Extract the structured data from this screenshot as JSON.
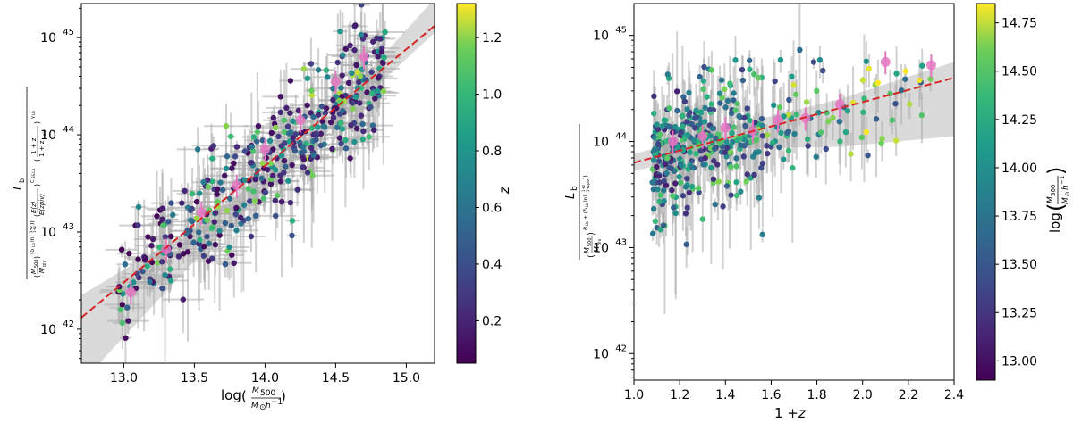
{
  "chart_data": [
    {
      "type": "scatter",
      "panel": "left",
      "xlabel": "log(M500 / M⊙h⁻¹)",
      "ylabel": "L_b / ((M500/Mpiv)^(δLb ln((1+z)/(1+zpiv))) (E(z)/E(zpiv))^(C_SS,Lb) ((1+z)/(1+zpiv))^(γLb))",
      "xlim": [
        12.7,
        15.2
      ],
      "ylim_log10": [
        41.65,
        45.35
      ],
      "y_scale": "log",
      "x_ticks": [
        "13.0",
        "13.5",
        "14.0",
        "14.5",
        "15.0"
      ],
      "x_tick_values": [
        13.0,
        13.5,
        14.0,
        14.5,
        15.0
      ],
      "y_tick_exponents": [
        42,
        43,
        44,
        45
      ],
      "colorbar": {
        "label": "z",
        "range": [
          0.05,
          1.32
        ],
        "ticks": [
          "0.2",
          "0.4",
          "0.6",
          "0.8",
          "1.0",
          "1.2"
        ],
        "tick_values": [
          0.2,
          0.4,
          0.6,
          0.8,
          1.0,
          1.2
        ]
      },
      "fit_line": {
        "x": [
          12.7,
          15.2
        ],
        "log10_y": [
          42.12,
          45.12
        ],
        "color": "#d62728",
        "style": "dashed"
      },
      "confidence_band": {
        "x": [
          12.7,
          13.5,
          14.2,
          15.2
        ],
        "log10_y_low": [
          41.45,
          42.7,
          43.7,
          45.05
        ],
        "log10_y_high": [
          42.35,
          43.05,
          43.8,
          45.4
        ]
      },
      "binned_points": {
        "x": [
          13.05,
          13.3,
          13.55,
          13.8,
          14.0,
          14.25,
          14.5,
          14.7
        ],
        "log10_y": [
          42.38,
          42.82,
          43.2,
          43.48,
          43.85,
          44.15,
          44.55,
          44.8
        ],
        "color": "#e377c2"
      },
      "scatter_model": {
        "count": 420,
        "x_range": [
          12.95,
          14.85
        ],
        "log10_y_relation": "log10(y) = 42.12 + 1.2*(x - 12.7)",
        "log10_y_scatter": 0.28,
        "color_value": "z"
      }
    },
    {
      "type": "scatter",
      "panel": "right",
      "xlabel": "1 + z",
      "ylabel": "L_b / (M500/Mpiv)^(B_Lb + δLb ln((1+z)/(1+zpiv)))",
      "xlim": [
        1.0,
        2.4
      ],
      "ylim_log10": [
        41.75,
        45.3
      ],
      "y_scale": "log",
      "x_ticks": [
        "1.0",
        "1.2",
        "1.4",
        "1.6",
        "1.8",
        "2.0",
        "2.2",
        "2.4"
      ],
      "x_tick_values": [
        1.0,
        1.2,
        1.4,
        1.6,
        1.8,
        2.0,
        2.2,
        2.4
      ],
      "y_tick_exponents": [
        42,
        43,
        44,
        45
      ],
      "colorbar": {
        "label": "log(M500 / M⊙h⁻¹)",
        "range": [
          12.9,
          14.85
        ],
        "ticks": [
          "13.00",
          "13.25",
          "13.50",
          "13.75",
          "14.00",
          "14.25",
          "14.50",
          "14.75"
        ],
        "tick_values": [
          13.0,
          13.25,
          13.5,
          13.75,
          14.0,
          14.25,
          14.5,
          14.75
        ]
      },
      "fit_line": {
        "x": [
          1.0,
          2.4
        ],
        "log10_y": [
          43.8,
          44.6
        ],
        "color": "#d62728",
        "style": "dashed"
      },
      "confidence_band": {
        "x": [
          1.0,
          1.4,
          1.9,
          2.4
        ],
        "log10_y_low": [
          43.72,
          43.93,
          43.95,
          44.05
        ],
        "log10_y_high": [
          43.88,
          44.13,
          44.4,
          44.75
        ]
      },
      "binned_points": {
        "x": [
          1.17,
          1.3,
          1.4,
          1.52,
          1.63,
          1.75,
          1.9,
          2.1,
          2.3
        ],
        "log10_y": [
          44.0,
          44.05,
          44.13,
          44.1,
          44.2,
          44.22,
          44.35,
          44.75,
          44.72
        ],
        "color": "#e377c2"
      },
      "scatter_model": {
        "count": 420,
        "x_range": [
          1.05,
          2.32
        ],
        "log10_y_relation": "log10(y) = 43.8 + 0.57*(x - 1.0)",
        "log10_y_scatter": 0.3,
        "color_value": "log M500"
      }
    }
  ]
}
